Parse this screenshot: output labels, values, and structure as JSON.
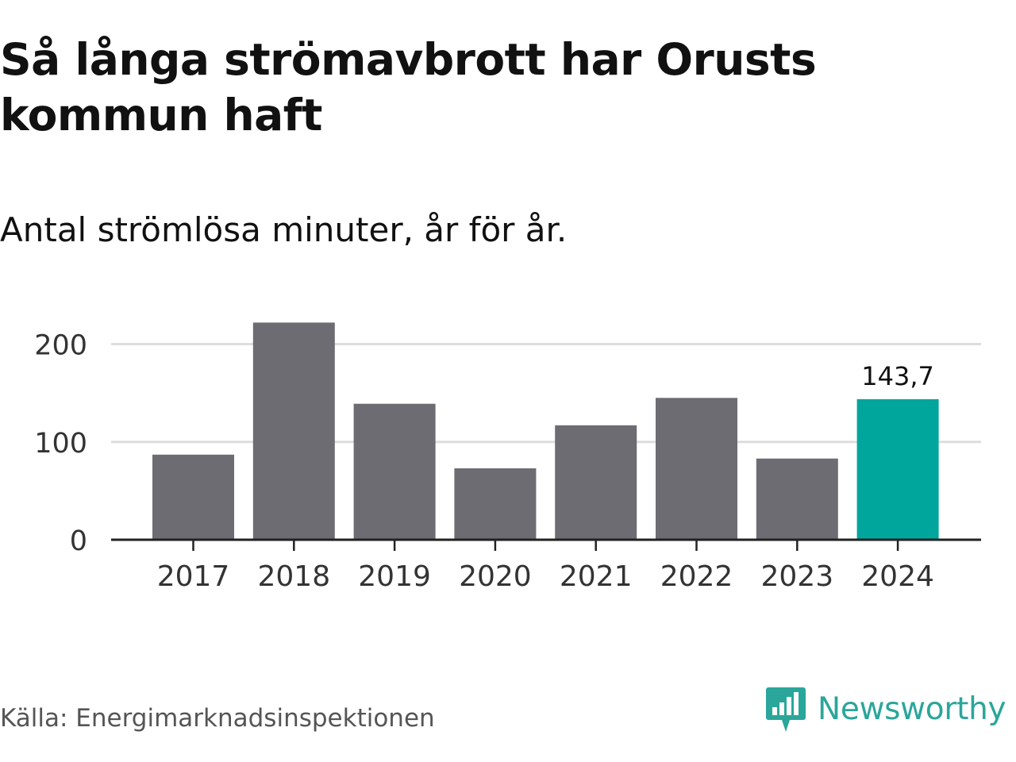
{
  "header": {
    "title": "Så långa strömavbrott har Orusts kommun haft",
    "subtitle": "Antal strömlösa minuter, år för år."
  },
  "footer": {
    "source": "Källa: Energimarknadsinspektionen",
    "brand": "Newsworthy",
    "brand_icon": "bar-chart-speech-bubble-icon"
  },
  "colors": {
    "bar": "#6d6c73",
    "highlight": "#00a69c",
    "grid": "#dddddd",
    "axis": "#222222",
    "brand": "#2aa69a"
  },
  "chart_data": {
    "type": "bar",
    "title": "Så långa strömavbrott har Orusts kommun haft",
    "subtitle": "Antal strömlösa minuter, år för år.",
    "xlabel": "",
    "ylabel": "",
    "categories": [
      "2017",
      "2018",
      "2019",
      "2020",
      "2021",
      "2022",
      "2023",
      "2024"
    ],
    "values": [
      87,
      222,
      139,
      73,
      117,
      145,
      83,
      143.7
    ],
    "highlight_index": 7,
    "data_labels": [
      {
        "index": 7,
        "text": "143,7"
      }
    ],
    "y_ticks": [
      0,
      100,
      200
    ],
    "y_tick_labels": [
      "0",
      "100",
      "200"
    ],
    "ylim": [
      0,
      230
    ],
    "grid": true
  }
}
